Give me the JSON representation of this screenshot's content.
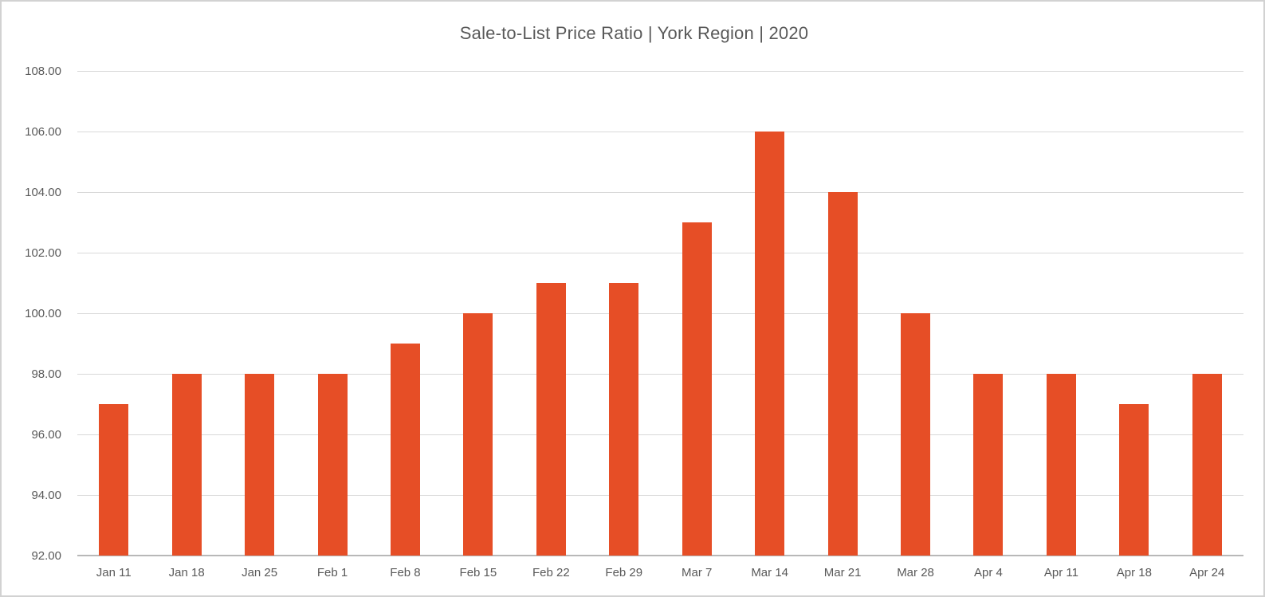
{
  "chart_data": {
    "type": "bar",
    "title": "Sale-to-List Price Ratio | York Region | 2020",
    "categories": [
      "Jan 11",
      "Jan 18",
      "Jan 25",
      "Feb 1",
      "Feb 8",
      "Feb 15",
      "Feb 22",
      "Feb 29",
      "Mar 7",
      "Mar 14",
      "Mar 21",
      "Mar 28",
      "Apr 4",
      "Apr 11",
      "Apr 18",
      "Apr 24"
    ],
    "values": [
      97,
      98,
      98,
      98,
      99,
      100,
      101,
      101,
      103,
      106,
      104,
      100,
      98,
      98,
      97,
      98
    ],
    "xlabel": "",
    "ylabel": "",
    "ylim": [
      92,
      108
    ],
    "ytick_step": 2,
    "ytick_labels": [
      "108.00",
      "106.00",
      "104.00",
      "102.00",
      "100.00",
      "98.00",
      "96.00",
      "94.00",
      "92.00"
    ],
    "grid": true,
    "legend_position": "none",
    "colors": {
      "bar": "#E64E26",
      "gridline": "#D9D9D9",
      "axis_line": "#B8B8B8",
      "text": "#595959",
      "frame_border": "#D2D2D2",
      "background": "#FFFFFF"
    }
  }
}
